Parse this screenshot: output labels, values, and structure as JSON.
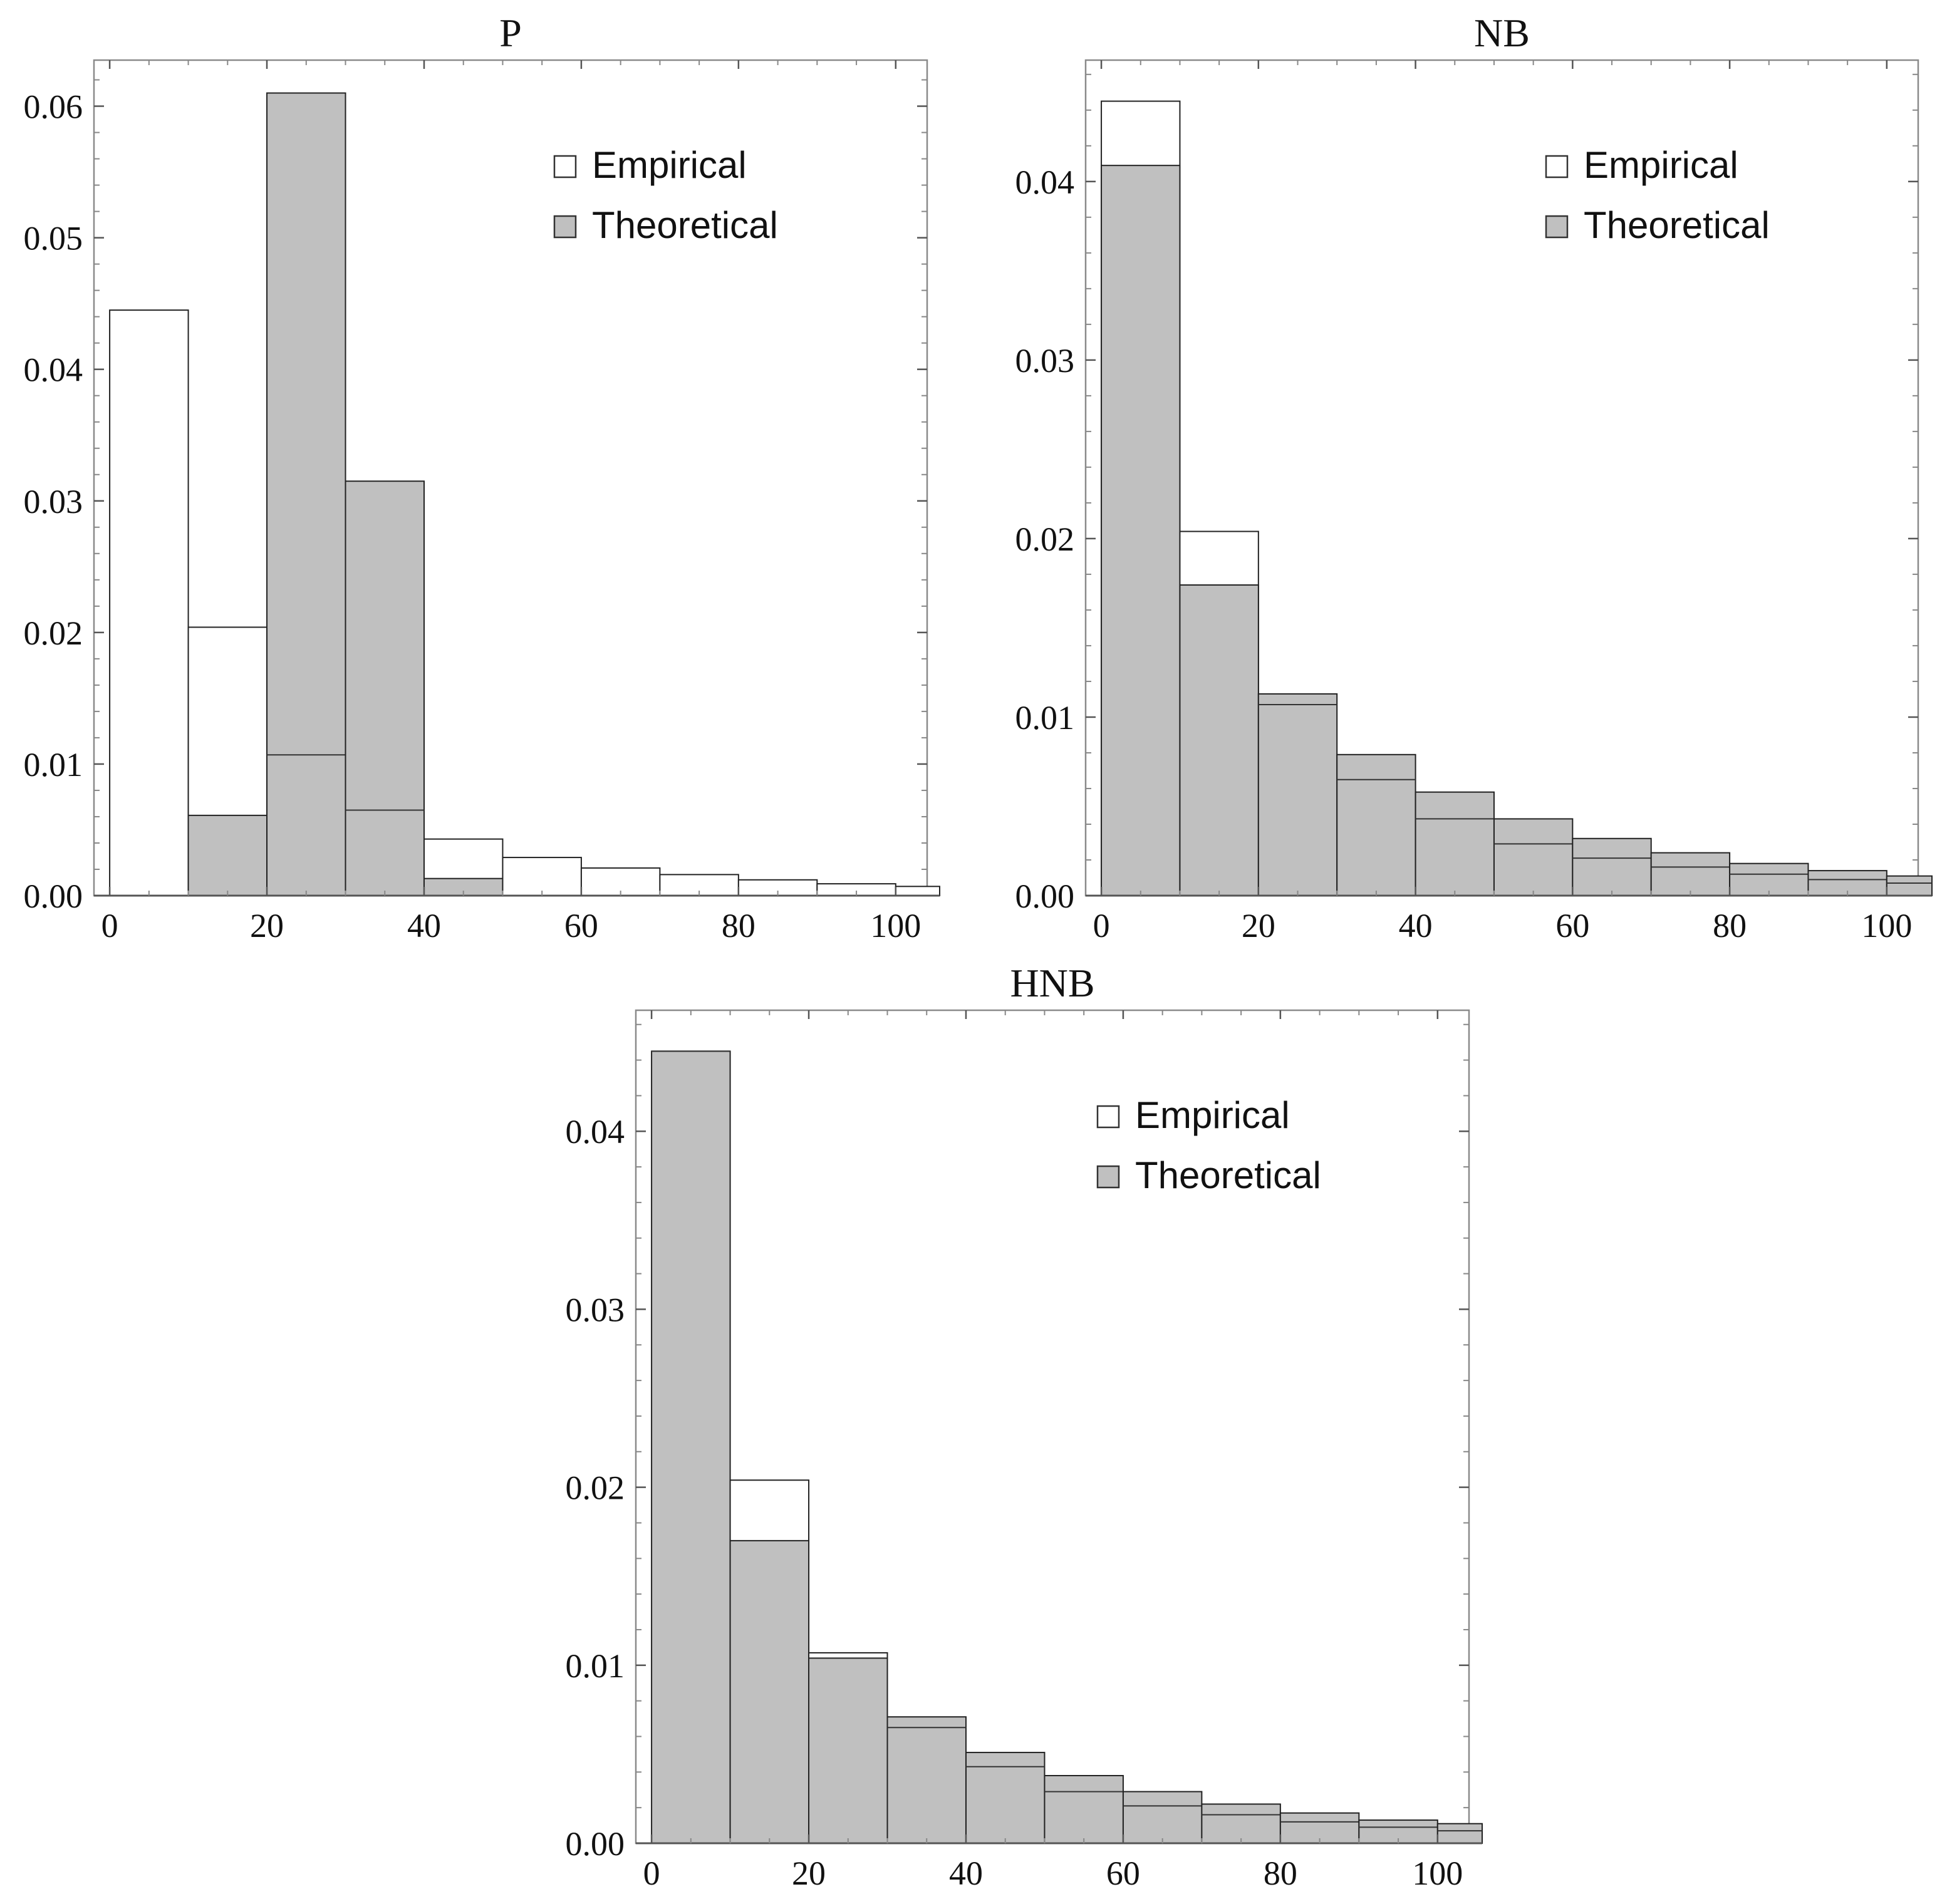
{
  "chart_data": [
    {
      "type": "bar",
      "title": "P",
      "bin_edges": [
        0,
        10,
        20,
        30,
        40,
        50,
        60,
        70,
        80,
        90,
        100,
        110
      ],
      "xlim": [
        -2,
        104
      ],
      "ylim": [
        0,
        0.0635
      ],
      "xticks": [
        0,
        20,
        40,
        60,
        80,
        100
      ],
      "xtick_labels": [
        "0",
        "20",
        "40",
        "60",
        "80",
        "100"
      ],
      "yticks": [
        0,
        0.01,
        0.02,
        0.03,
        0.04,
        0.05,
        0.06
      ],
      "ytick_labels": [
        "0.00",
        "0.01",
        "0.02",
        "0.03",
        "0.04",
        "0.05",
        "0.06"
      ],
      "legend_position": "top-right",
      "legend": [
        "Empirical",
        "Theoretical"
      ],
      "series": [
        {
          "name": "Empirical",
          "values": [
            0.0445,
            0.0204,
            0.0107,
            0.0065,
            0.0043,
            0.0029,
            0.0021,
            0.0016,
            0.0012,
            0.0009,
            0.0007
          ]
        },
        {
          "name": "Theoretical",
          "values": [
            0.0,
            0.0061,
            0.061,
            0.0315,
            0.0013,
            0.0,
            0.0,
            0.0,
            0.0,
            0.0,
            0.0
          ]
        }
      ]
    },
    {
      "type": "bar",
      "title": "NB",
      "bin_edges": [
        0,
        10,
        20,
        30,
        40,
        50,
        60,
        70,
        80,
        90,
        100,
        110
      ],
      "xlim": [
        -2,
        104
      ],
      "ylim": [
        0,
        0.0468
      ],
      "xticks": [
        0,
        20,
        40,
        60,
        80,
        100
      ],
      "xtick_labels": [
        "0",
        "20",
        "40",
        "60",
        "80",
        "100"
      ],
      "yticks": [
        0,
        0.01,
        0.02,
        0.03,
        0.04
      ],
      "ytick_labels": [
        "0.00",
        "0.01",
        "0.02",
        "0.03",
        "0.04"
      ],
      "legend_position": "top-right",
      "legend": [
        "Empirical",
        "Theoretical"
      ],
      "series": [
        {
          "name": "Empirical",
          "values": [
            0.0445,
            0.0204,
            0.0107,
            0.0065,
            0.0043,
            0.0029,
            0.0021,
            0.0016,
            0.0012,
            0.0009,
            0.0007
          ]
        },
        {
          "name": "Theoretical",
          "values": [
            0.0409,
            0.0174,
            0.0113,
            0.0079,
            0.0058,
            0.0043,
            0.0032,
            0.0024,
            0.0018,
            0.0014,
            0.0011
          ]
        }
      ]
    },
    {
      "type": "bar",
      "title": "HNB",
      "bin_edges": [
        0,
        10,
        20,
        30,
        40,
        50,
        60,
        70,
        80,
        90,
        100,
        110
      ],
      "xlim": [
        -2,
        104
      ],
      "ylim": [
        0,
        0.0468
      ],
      "xticks": [
        0,
        20,
        40,
        60,
        80,
        100
      ],
      "xtick_labels": [
        "0",
        "20",
        "40",
        "60",
        "80",
        "100"
      ],
      "yticks": [
        0,
        0.01,
        0.02,
        0.03,
        0.04
      ],
      "ytick_labels": [
        "0.00",
        "0.01",
        "0.02",
        "0.03",
        "0.04"
      ],
      "legend_position": "top-right",
      "legend": [
        "Empirical",
        "Theoretical"
      ],
      "series": [
        {
          "name": "Empirical",
          "values": [
            0.0445,
            0.0204,
            0.0107,
            0.0065,
            0.0043,
            0.0029,
            0.0021,
            0.0016,
            0.0012,
            0.0009,
            0.0007
          ]
        },
        {
          "name": "Theoretical",
          "values": [
            0.0445,
            0.017,
            0.0104,
            0.0071,
            0.0051,
            0.0038,
            0.0029,
            0.0022,
            0.0017,
            0.0013,
            0.0011
          ]
        }
      ]
    }
  ]
}
